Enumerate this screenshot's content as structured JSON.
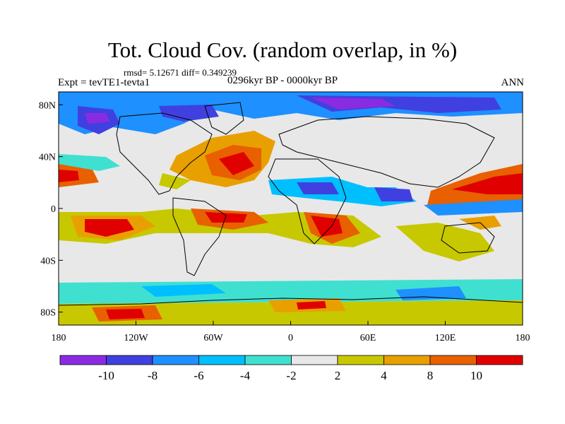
{
  "title": "Tot. Cloud Cov. (random overlap, in %)",
  "stats_line": "rmsd= 5.12671 diff= 0.349239",
  "experiment_label": "Expt = tevTE1-tevta1",
  "period_label": "0296kyr BP - 0000kyr BP",
  "season_label": "ANN",
  "map": {
    "projection": "cylindrical-equidistant",
    "lon_range": [
      -180,
      180
    ],
    "lat_range": [
      -90,
      90
    ],
    "x_tick_labels": [
      "180",
      "120W",
      "60W",
      "0",
      "60E",
      "120E",
      "180"
    ],
    "y_tick_labels": [
      "80N",
      "40N",
      "0",
      "40S",
      "80S"
    ],
    "field": "difference in total cloud cover (%)"
  },
  "colorbar": {
    "boundary_labels": [
      "-10",
      "-8",
      "-6",
      "-4",
      "-2",
      "2",
      "4",
      "8",
      "10"
    ],
    "colors": [
      "#8a2be2",
      "#4040e0",
      "#1e90ff",
      "#00bfff",
      "#40e0d0",
      "#e8e8e8",
      "#c8c800",
      "#e8a000",
      "#e86000",
      "#e00000"
    ]
  }
}
